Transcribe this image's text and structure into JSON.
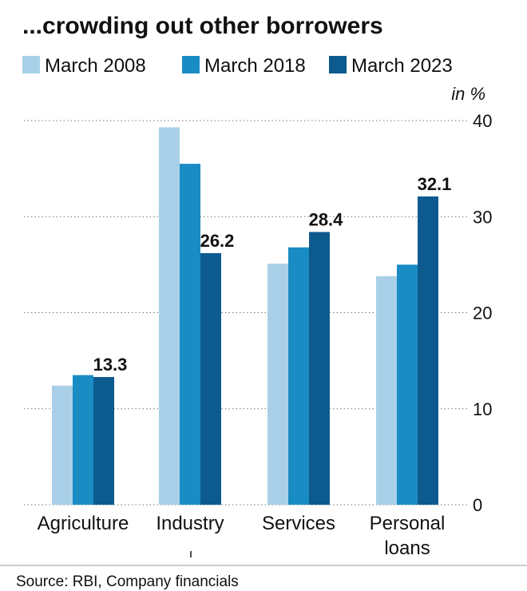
{
  "chart_data": {
    "type": "bar",
    "title": "...crowding out other borrowers",
    "unit_label": "in %",
    "categories": [
      "Agriculture",
      "Industry",
      "Services",
      "Personal loans"
    ],
    "series": [
      {
        "name": "March 2008",
        "color": "#a9d0e8",
        "values": [
          12.4,
          39.3,
          25.1,
          23.8
        ]
      },
      {
        "name": "March 2018",
        "color": "#1a8cc4",
        "values": [
          13.5,
          35.5,
          26.8,
          25.0
        ]
      },
      {
        "name": "March 2023",
        "color": "#0d5a8f",
        "values": [
          13.3,
          26.2,
          28.4,
          32.1
        ]
      }
    ],
    "data_labels": {
      "series_index": 2,
      "labels": [
        "13.3",
        "26.2",
        "28.4",
        "32.1"
      ]
    },
    "ylim": [
      0,
      40
    ],
    "yticks": [
      0,
      10,
      20,
      30,
      40
    ],
    "grid": true,
    "y_axis_side": "right",
    "legend_position": "top"
  },
  "source": "Source: RBI, Company financials"
}
